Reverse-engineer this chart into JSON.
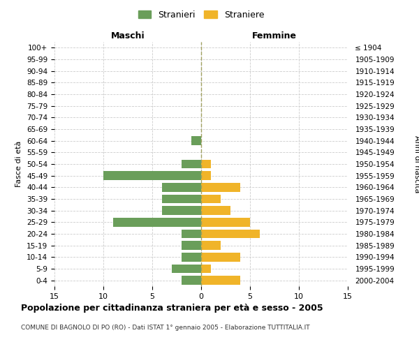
{
  "age_groups": [
    "100+",
    "95-99",
    "90-94",
    "85-89",
    "80-84",
    "75-79",
    "70-74",
    "65-69",
    "60-64",
    "55-59",
    "50-54",
    "45-49",
    "40-44",
    "35-39",
    "30-34",
    "25-29",
    "20-24",
    "15-19",
    "10-14",
    "5-9",
    "0-4"
  ],
  "birth_years": [
    "≤ 1904",
    "1905-1909",
    "1910-1914",
    "1915-1919",
    "1920-1924",
    "1925-1929",
    "1930-1934",
    "1935-1939",
    "1940-1944",
    "1945-1949",
    "1950-1954",
    "1955-1959",
    "1960-1964",
    "1965-1969",
    "1970-1974",
    "1975-1979",
    "1980-1984",
    "1985-1989",
    "1990-1994",
    "1995-1999",
    "2000-2004"
  ],
  "maschi": [
    0,
    0,
    0,
    0,
    0,
    0,
    0,
    0,
    1,
    0,
    2,
    10,
    4,
    4,
    4,
    9,
    2,
    2,
    2,
    3,
    2
  ],
  "femmine": [
    0,
    0,
    0,
    0,
    0,
    0,
    0,
    0,
    0,
    0,
    1,
    1,
    4,
    2,
    3,
    5,
    6,
    2,
    4,
    1,
    4
  ],
  "male_color": "#6a9e5a",
  "female_color": "#f0b429",
  "title": "Popolazione per cittadinanza straniera per età e sesso - 2005",
  "subtitle": "COMUNE DI BAGNOLO DI PO (RO) - Dati ISTAT 1° gennaio 2005 - Elaborazione TUTTITALIA.IT",
  "xlabel_left": "Maschi",
  "xlabel_right": "Femmine",
  "ylabel_left": "Fasce di età",
  "ylabel_right": "Anni di nascita",
  "legend_male": "Stranieri",
  "legend_female": "Straniere",
  "xlim": 15,
  "background_color": "#ffffff",
  "grid_color": "#cccccc"
}
